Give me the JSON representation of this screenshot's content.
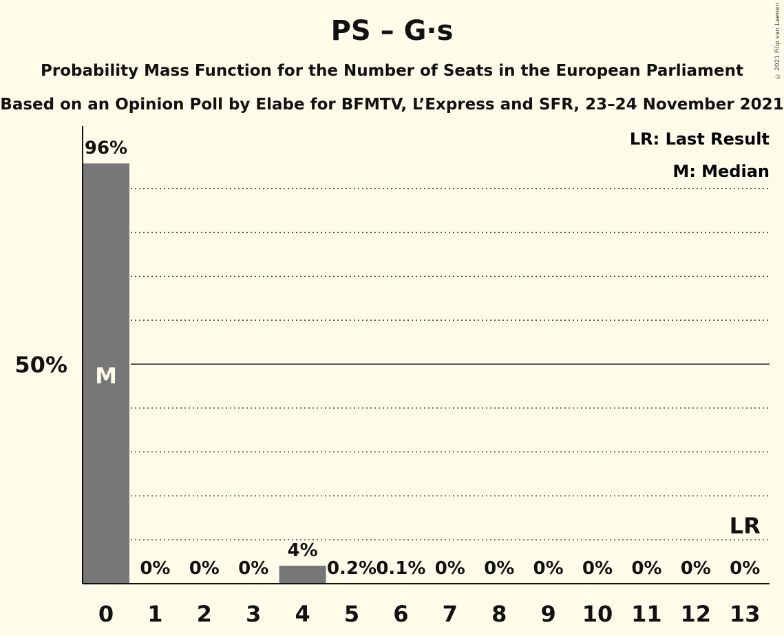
{
  "title": "PS – G·s",
  "subtitle_line1": "Probability Mass Function for the Number of Seats in the European Parliament",
  "subtitle_line2": "Based on an Opinion Poll by Elabe for BFMTV, L’Express and SFR, 23–24 November 2021",
  "copyright": "© 2021 Filip van Laenen",
  "legend": {
    "last_result": "LR: Last Result",
    "median": "M: Median"
  },
  "colors": {
    "background": "#fffdea",
    "bar": "#777777",
    "axis": "#111111",
    "grid": "#222222"
  },
  "chart_data": {
    "type": "bar",
    "title": "PS – G·s",
    "categories": [
      "0",
      "1",
      "2",
      "3",
      "4",
      "5",
      "6",
      "7",
      "8",
      "9",
      "10",
      "11",
      "12",
      "13"
    ],
    "values": [
      95.7,
      0,
      0,
      0,
      4.1,
      0.2,
      0.1,
      0,
      0,
      0,
      0,
      0,
      0,
      0
    ],
    "value_labels": [
      "96%",
      "0%",
      "0%",
      "0%",
      "4%",
      "0.2%",
      "0.1%",
      "0%",
      "0%",
      "0%",
      "0%",
      "0%",
      "0%",
      "0%"
    ],
    "ylim": [
      0,
      100
    ],
    "ytick_labels": [
      {
        "value": 50,
        "label": "50%"
      }
    ],
    "gridline_step": 10,
    "median_seat": 0,
    "median_label": "M",
    "last_result_seat": 13,
    "last_result_label": "LR",
    "grid": true,
    "legend_position": "top-right"
  }
}
